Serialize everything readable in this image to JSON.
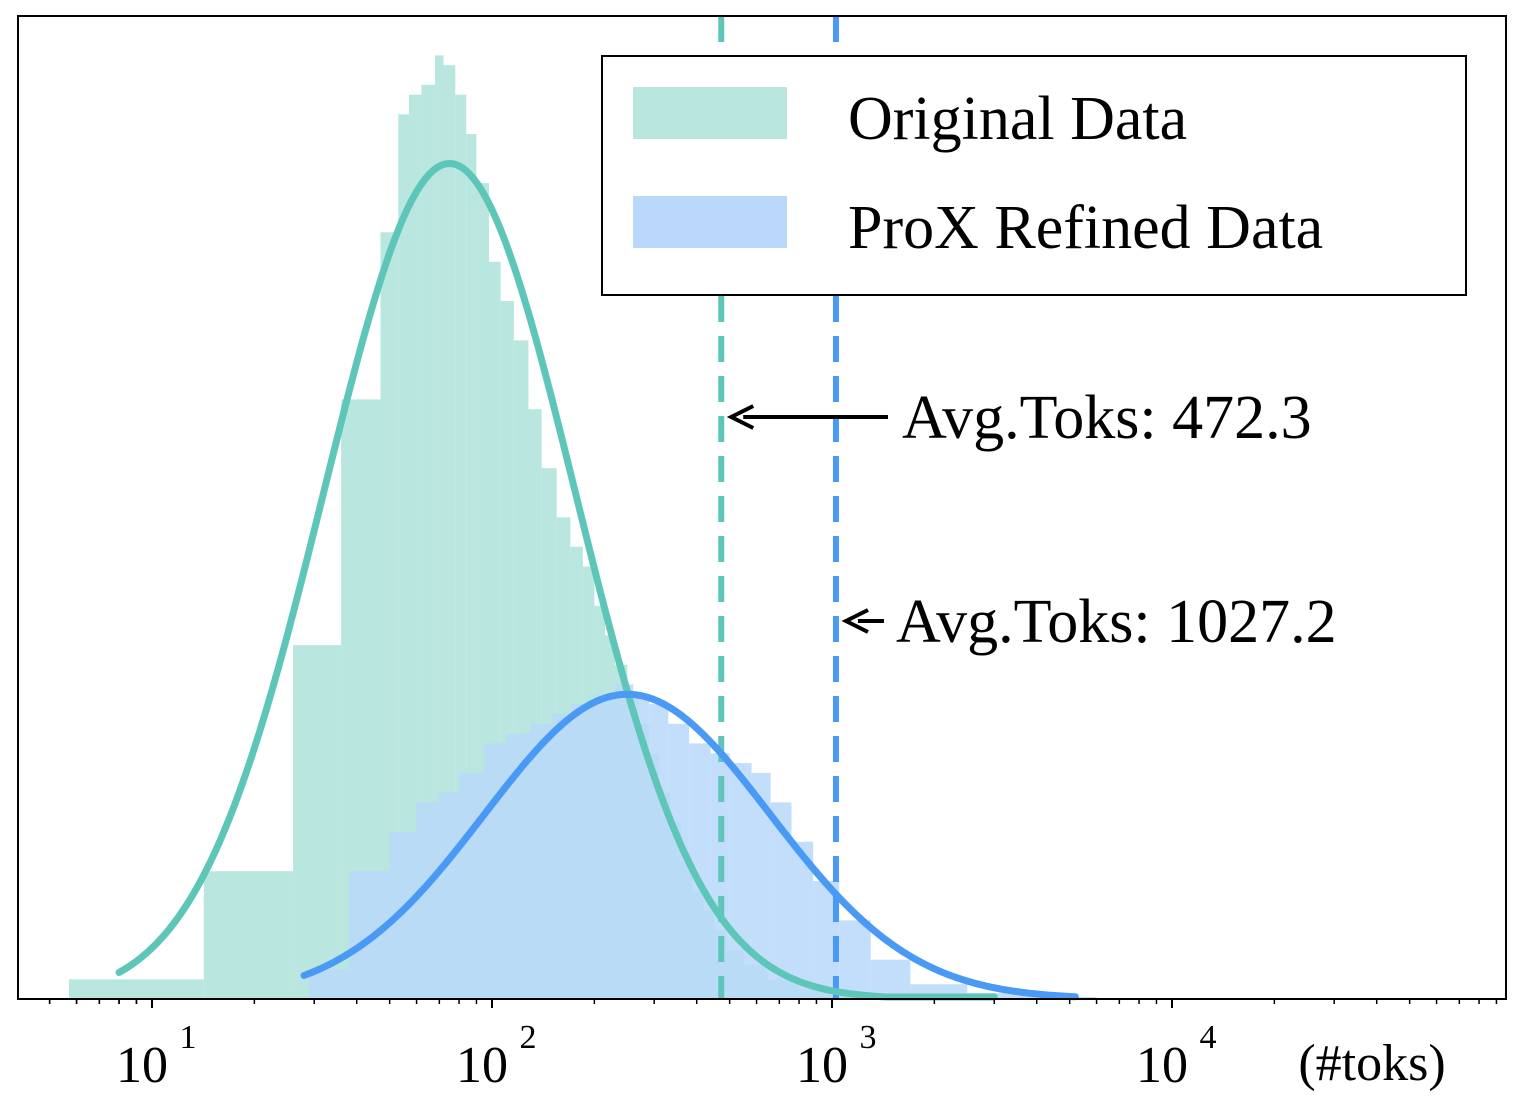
{
  "chart_data": {
    "type": "histogram",
    "title": "",
    "x_scale": "log",
    "xlim": [
      4,
      6000
    ],
    "ylim": [
      0,
      1.0
    ],
    "y_axis_visible": false,
    "grid": false,
    "x_ticks": [
      {
        "value": 10,
        "base": "10",
        "exp": "1"
      },
      {
        "value": 100,
        "base": "10",
        "exp": "2"
      },
      {
        "value": 1000,
        "base": "10",
        "exp": "3"
      },
      {
        "value": 10000,
        "base": "10",
        "exp": "4"
      }
    ],
    "x_unit_label": "(#toks)",
    "legend": {
      "location": "upper right",
      "entries": [
        {
          "label": "Original Data",
          "color": "#b9e6df"
        },
        {
          "label": "ProX Refined Data",
          "color": "#b9d8fa"
        }
      ]
    },
    "series": [
      {
        "name": "Original Data",
        "histogram_color": "#b9e6df",
        "curve_color": "#5ec6b8",
        "bins": [
          [
            5.7,
            14.2,
            0.02
          ],
          [
            14.2,
            26,
            0.13
          ],
          [
            26,
            36,
            0.36
          ],
          [
            36,
            47,
            0.61
          ],
          [
            47,
            53,
            0.78
          ],
          [
            53,
            57,
            0.9
          ],
          [
            57,
            62,
            0.92
          ],
          [
            62,
            68,
            0.93
          ],
          [
            68,
            72,
            0.96
          ],
          [
            72,
            78,
            0.95
          ],
          [
            78,
            84,
            0.92
          ],
          [
            84,
            90,
            0.88
          ],
          [
            90,
            98,
            0.83
          ],
          [
            98,
            106,
            0.75
          ],
          [
            106,
            116,
            0.71
          ],
          [
            116,
            128,
            0.67
          ],
          [
            128,
            140,
            0.6
          ],
          [
            140,
            155,
            0.54
          ],
          [
            155,
            170,
            0.49
          ],
          [
            170,
            185,
            0.46
          ],
          [
            185,
            200,
            0.44
          ],
          [
            200,
            215,
            0.4
          ],
          [
            215,
            230,
            0.37
          ],
          [
            230,
            250,
            0.34
          ],
          [
            250,
            270,
            0.31
          ],
          [
            270,
            290,
            0.28
          ],
          [
            290,
            310,
            0.25
          ],
          [
            310,
            335,
            0.21
          ],
          [
            335,
            360,
            0.18
          ],
          [
            360,
            390,
            0.14
          ],
          [
            390,
            420,
            0.11
          ],
          [
            420,
            450,
            0.09
          ],
          [
            450,
            490,
            0.07
          ],
          [
            490,
            550,
            0.05
          ],
          [
            550,
            650,
            0.035
          ],
          [
            650,
            800,
            0.02
          ],
          [
            800,
            1000,
            0.01
          ],
          [
            1000,
            1400,
            0.005
          ]
        ],
        "curve": {
          "peak_x": 75,
          "peak_y": 0.85,
          "log10_sigma": 0.37
        },
        "mean": 472.3,
        "annotation": "Avg.Toks: 472.3"
      },
      {
        "name": "ProX Refined Data",
        "histogram_color": "#b9d8fa",
        "curve_color": "#4a9af5",
        "bins": [
          [
            29,
            38,
            0.03
          ],
          [
            38,
            50,
            0.13
          ],
          [
            50,
            60,
            0.17
          ],
          [
            60,
            70,
            0.2
          ],
          [
            70,
            80,
            0.21
          ],
          [
            80,
            95,
            0.23
          ],
          [
            95,
            110,
            0.26
          ],
          [
            110,
            130,
            0.27
          ],
          [
            130,
            150,
            0.28
          ],
          [
            150,
            170,
            0.29
          ],
          [
            170,
            200,
            0.3
          ],
          [
            200,
            230,
            0.31
          ],
          [
            230,
            260,
            0.32
          ],
          [
            260,
            290,
            0.31
          ],
          [
            290,
            330,
            0.3
          ],
          [
            330,
            380,
            0.28
          ],
          [
            380,
            440,
            0.26
          ],
          [
            440,
            500,
            0.25
          ],
          [
            500,
            580,
            0.24
          ],
          [
            580,
            660,
            0.23
          ],
          [
            660,
            760,
            0.2
          ],
          [
            760,
            880,
            0.16
          ],
          [
            880,
            1050,
            0.12
          ],
          [
            1050,
            1300,
            0.08
          ],
          [
            1300,
            1700,
            0.04
          ],
          [
            1700,
            2500,
            0.015
          ],
          [
            2500,
            4000,
            0.006
          ],
          [
            4000,
            6000,
            0.002
          ]
        ],
        "curve": {
          "peak_x": 250,
          "peak_y": 0.31,
          "log10_sigma": 0.42
        },
        "mean": 1027.2,
        "annotation": "Avg.Toks: 1027.2"
      }
    ]
  }
}
